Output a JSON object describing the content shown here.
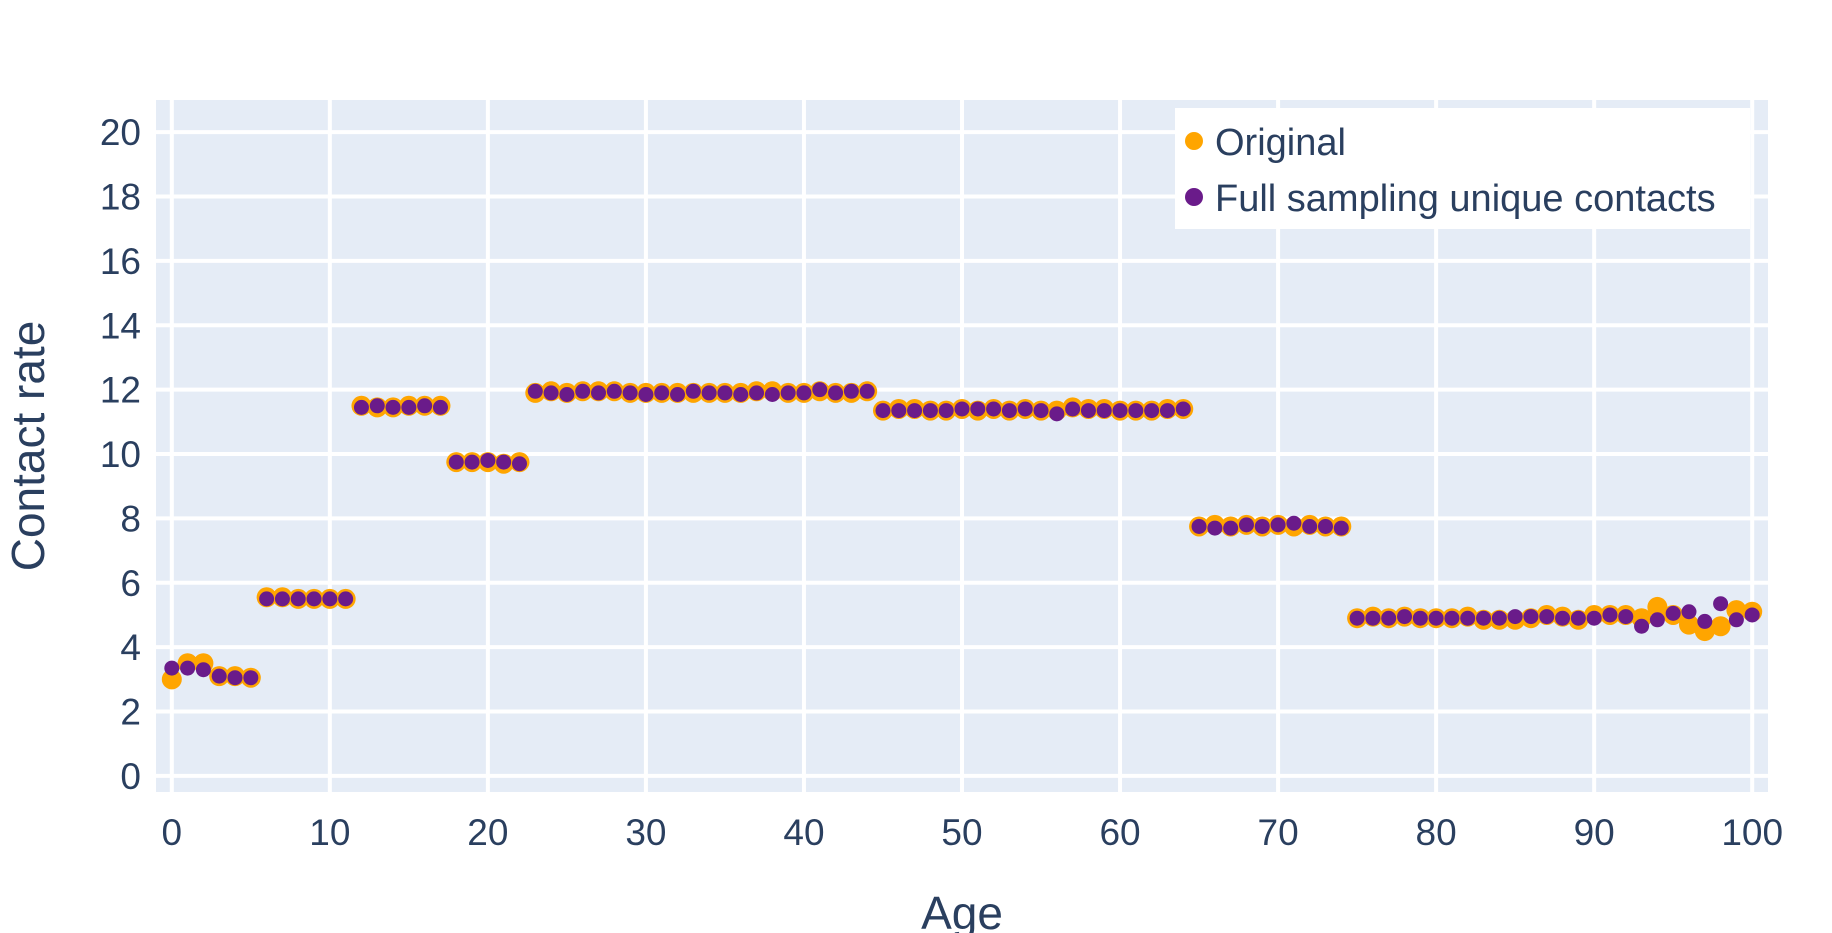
{
  "chart_data": {
    "type": "scatter",
    "title": "",
    "xlabel": "Age",
    "ylabel": "Contact rate",
    "xlim": [
      -1,
      101
    ],
    "ylim": [
      -0.5,
      21
    ],
    "xticks": [
      0,
      10,
      20,
      30,
      40,
      50,
      60,
      70,
      80,
      90,
      100
    ],
    "yticks": [
      0,
      2,
      4,
      6,
      8,
      10,
      12,
      14,
      16,
      18,
      20
    ],
    "grid": true,
    "legend_position": "top-right",
    "colors": {
      "plot_bg": "#e5ecf6",
      "grid": "#ffffff",
      "text": "#2a3f5f"
    },
    "series": [
      {
        "name": "Original",
        "color": "#ffa500",
        "marker_size": "large",
        "x": [
          0,
          1,
          2,
          3,
          4,
          5,
          6,
          7,
          8,
          9,
          10,
          11,
          12,
          13,
          14,
          15,
          16,
          17,
          18,
          19,
          20,
          21,
          22,
          23,
          24,
          25,
          26,
          27,
          28,
          29,
          30,
          31,
          32,
          33,
          34,
          35,
          36,
          37,
          38,
          39,
          40,
          41,
          42,
          43,
          44,
          45,
          46,
          47,
          48,
          49,
          50,
          51,
          52,
          53,
          54,
          55,
          56,
          57,
          58,
          59,
          60,
          61,
          62,
          63,
          64,
          65,
          66,
          67,
          68,
          69,
          70,
          71,
          72,
          73,
          74,
          75,
          76,
          77,
          78,
          79,
          80,
          81,
          82,
          83,
          84,
          85,
          86,
          87,
          88,
          89,
          90,
          91,
          92,
          93,
          94,
          95,
          96,
          97,
          98,
          99,
          100
        ],
        "y": [
          3.0,
          3.5,
          3.5,
          3.1,
          3.1,
          3.05,
          5.55,
          5.55,
          5.5,
          5.5,
          5.5,
          5.5,
          11.5,
          11.45,
          11.45,
          11.5,
          11.5,
          11.5,
          9.75,
          9.75,
          9.75,
          9.7,
          9.75,
          11.9,
          11.95,
          11.9,
          11.95,
          11.95,
          11.95,
          11.9,
          11.9,
          11.9,
          11.9,
          11.9,
          11.9,
          11.9,
          11.9,
          11.95,
          11.95,
          11.9,
          11.9,
          11.95,
          11.9,
          11.9,
          11.95,
          11.35,
          11.4,
          11.4,
          11.35,
          11.35,
          11.4,
          11.35,
          11.4,
          11.35,
          11.4,
          11.35,
          11.35,
          11.45,
          11.4,
          11.4,
          11.35,
          11.35,
          11.35,
          11.4,
          11.4,
          7.75,
          7.8,
          7.75,
          7.8,
          7.75,
          7.8,
          7.75,
          7.8,
          7.75,
          7.75,
          4.9,
          4.95,
          4.9,
          4.95,
          4.9,
          4.9,
          4.9,
          4.95,
          4.85,
          4.85,
          4.85,
          4.9,
          5.0,
          4.95,
          4.85,
          5.0,
          5.0,
          5.0,
          4.9,
          5.25,
          5.0,
          4.7,
          4.5,
          4.65,
          5.15,
          5.1
        ]
      },
      {
        "name": "Full sampling unique contacts",
        "color": "#6a1b8a",
        "marker_size": "small",
        "x": [
          0,
          1,
          2,
          3,
          4,
          5,
          6,
          7,
          8,
          9,
          10,
          11,
          12,
          13,
          14,
          15,
          16,
          17,
          18,
          19,
          20,
          21,
          22,
          23,
          24,
          25,
          26,
          27,
          28,
          29,
          30,
          31,
          32,
          33,
          34,
          35,
          36,
          37,
          38,
          39,
          40,
          41,
          42,
          43,
          44,
          45,
          46,
          47,
          48,
          49,
          50,
          51,
          52,
          53,
          54,
          55,
          56,
          57,
          58,
          59,
          60,
          61,
          62,
          63,
          64,
          65,
          66,
          67,
          68,
          69,
          70,
          71,
          72,
          73,
          74,
          75,
          76,
          77,
          78,
          79,
          80,
          81,
          82,
          83,
          84,
          85,
          86,
          87,
          88,
          89,
          90,
          91,
          92,
          93,
          94,
          95,
          96,
          97,
          98,
          99,
          100
        ],
        "y": [
          3.35,
          3.35,
          3.3,
          3.1,
          3.05,
          3.05,
          5.5,
          5.5,
          5.5,
          5.5,
          5.5,
          5.5,
          11.45,
          11.5,
          11.45,
          11.45,
          11.5,
          11.45,
          9.75,
          9.75,
          9.8,
          9.75,
          9.7,
          11.95,
          11.9,
          11.85,
          11.95,
          11.9,
          11.95,
          11.9,
          11.85,
          11.9,
          11.85,
          11.95,
          11.9,
          11.9,
          11.85,
          11.9,
          11.85,
          11.9,
          11.9,
          12.0,
          11.9,
          11.95,
          11.95,
          11.35,
          11.35,
          11.35,
          11.35,
          11.35,
          11.4,
          11.4,
          11.4,
          11.35,
          11.4,
          11.35,
          11.25,
          11.4,
          11.35,
          11.35,
          11.35,
          11.35,
          11.35,
          11.35,
          11.4,
          7.75,
          7.7,
          7.7,
          7.8,
          7.75,
          7.8,
          7.85,
          7.75,
          7.75,
          7.7,
          4.9,
          4.9,
          4.9,
          4.95,
          4.9,
          4.9,
          4.9,
          4.9,
          4.9,
          4.9,
          4.95,
          4.95,
          4.95,
          4.9,
          4.9,
          4.9,
          5.0,
          4.95,
          4.65,
          4.85,
          5.05,
          5.1,
          4.8,
          5.35,
          4.85,
          5.0
        ]
      }
    ]
  }
}
